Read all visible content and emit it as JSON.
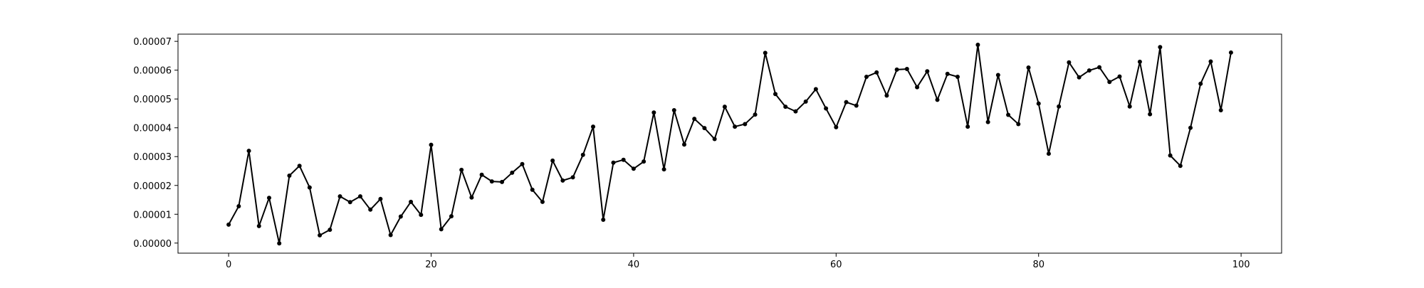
{
  "chart_data": {
    "type": "line",
    "title": "",
    "xlabel": "",
    "ylabel": "",
    "xlim": [
      -5,
      104
    ],
    "ylim": [
      -3.5e-06,
      7.25e-05
    ],
    "grid": false,
    "x_ticks": [
      0,
      20,
      40,
      60,
      80,
      100
    ],
    "x_tick_labels": [
      "0",
      "20",
      "40",
      "60",
      "80",
      "100"
    ],
    "y_ticks": [
      0,
      1e-05,
      2e-05,
      3e-05,
      4e-05,
      5e-05,
      6e-05,
      7e-05
    ],
    "y_tick_labels": [
      "0.00000",
      "0.00001",
      "0.00002",
      "0.00003",
      "0.00004",
      "0.00005",
      "0.00006",
      "0.00007"
    ],
    "series": [
      {
        "color": "#000000",
        "marker": "dot",
        "x": [
          0,
          1,
          2,
          3,
          4,
          5,
          6,
          7,
          8,
          9,
          10,
          11,
          12,
          13,
          14,
          15,
          16,
          17,
          18,
          19,
          20,
          21,
          22,
          23,
          24,
          25,
          26,
          27,
          28,
          29,
          30,
          31,
          32,
          33,
          34,
          35,
          36,
          37,
          38,
          39,
          40,
          41,
          42,
          43,
          44,
          45,
          46,
          47,
          48,
          49,
          50,
          51,
          52,
          53,
          54,
          55,
          56,
          57,
          58,
          59,
          60,
          61,
          62,
          63,
          64,
          65,
          66,
          67,
          68,
          69,
          70,
          71,
          72,
          73,
          74,
          75,
          76,
          77,
          78,
          79,
          80,
          81,
          82,
          83,
          84,
          85,
          86,
          87,
          88,
          89,
          90,
          91,
          92,
          93,
          94,
          95,
          96,
          97,
          98,
          99
        ],
        "values": [
          6.4e-06,
          1.28e-05,
          3.2e-05,
          5.9e-06,
          1.57e-05,
          -1e-07,
          2.34e-05,
          2.68e-05,
          1.93e-05,
          2.7e-06,
          4.6e-06,
          1.62e-05,
          1.42e-05,
          1.62e-05,
          1.16e-05,
          1.53e-05,
          2.8e-06,
          9.2e-06,
          1.43e-05,
          9.8e-06,
          3.41e-05,
          4.8e-06,
          9.3e-06,
          2.54e-05,
          1.58e-05,
          2.37e-05,
          2.14e-05,
          2.12e-05,
          2.44e-05,
          2.74e-05,
          1.85e-05,
          1.43e-05,
          2.86e-05,
          2.17e-05,
          2.28e-05,
          3.06e-05,
          4.04e-05,
          8.1e-06,
          2.79e-05,
          2.89e-05,
          2.58e-05,
          2.83e-05,
          4.53e-05,
          2.56e-05,
          4.61e-05,
          3.42e-05,
          4.31e-05,
          3.99e-05,
          3.61e-05,
          4.73e-05,
          4.04e-05,
          4.13e-05,
          4.46e-05,
          6.6e-05,
          5.17e-05,
          4.73e-05,
          4.57e-05,
          4.91e-05,
          5.34e-05,
          4.67e-05,
          4.02e-05,
          4.89e-05,
          4.77e-05,
          5.77e-05,
          5.92e-05,
          5.12e-05,
          6.02e-05,
          6.04e-05,
          5.41e-05,
          5.96e-05,
          4.97e-05,
          5.87e-05,
          5.77e-05,
          4.04e-05,
          6.88e-05,
          4.2e-05,
          5.83e-05,
          4.45e-05,
          4.13e-05,
          6.09e-05,
          4.84e-05,
          3.1e-05,
          4.74e-05,
          6.27e-05,
          5.75e-05,
          5.99e-05,
          6.1e-05,
          5.59e-05,
          5.78e-05,
          4.74e-05,
          6.29e-05,
          4.47e-05,
          6.8e-05,
          3.04e-05,
          2.68e-05,
          4e-05,
          5.53e-05,
          6.3e-05,
          4.61e-05,
          6.61e-05
        ]
      }
    ]
  }
}
